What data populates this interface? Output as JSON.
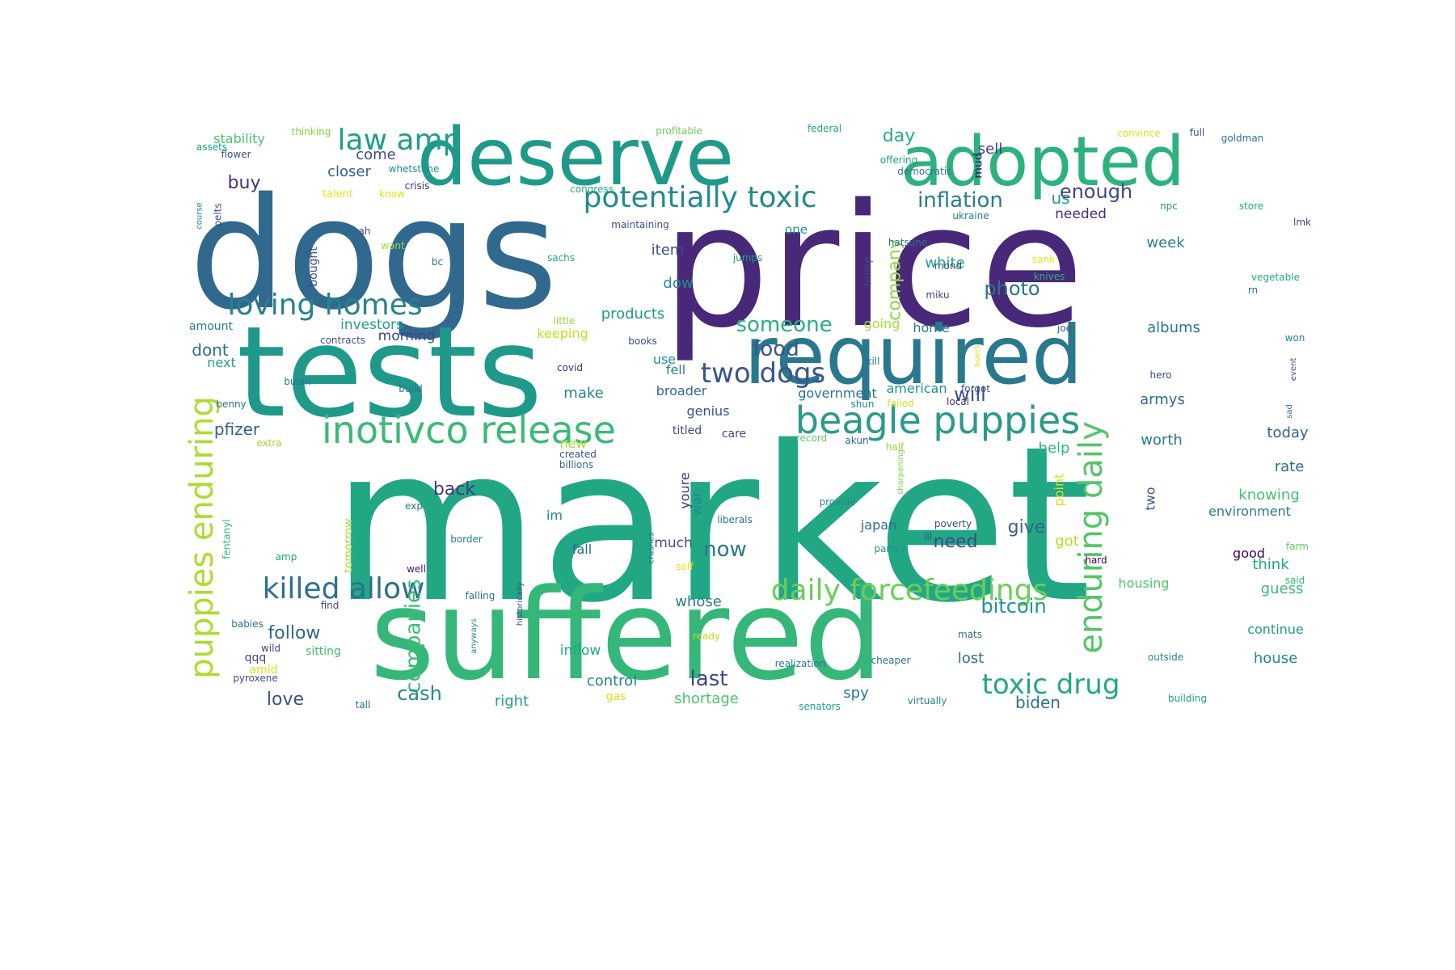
{
  "words": [
    {
      "text": "market",
      "color": "#22a785"
    },
    {
      "text": "price",
      "color": "#482878"
    },
    {
      "text": "dogs",
      "color": "#31688e"
    },
    {
      "text": "tests",
      "color": "#1f998a"
    },
    {
      "text": "suffered",
      "color": "#35b779"
    },
    {
      "text": "required",
      "color": "#2a788e"
    },
    {
      "text": "deserve",
      "color": "#1f9a8a"
    },
    {
      "text": "adopted",
      "color": "#2db27d"
    },
    {
      "text": "inotivco release",
      "color": "#3aba76"
    },
    {
      "text": "beagle puppies",
      "color": "#2a9a8a"
    },
    {
      "text": "puppies enduring",
      "color": "#addc30"
    },
    {
      "text": "enduring daily",
      "color": "#54c568"
    },
    {
      "text": "potentially toxic",
      "color": "#238a8d"
    },
    {
      "text": "loving homes",
      "color": "#26828e"
    },
    {
      "text": "killed allow",
      "color": "#2d708e"
    },
    {
      "text": "daily forcefeedings",
      "color": "#6ccd5a"
    },
    {
      "text": "two dogs",
      "color": "#39558c"
    },
    {
      "text": "toxic drug",
      "color": "#22a884"
    },
    {
      "text": "law amp",
      "color": "#1f9e89"
    },
    {
      "text": "inflation",
      "color": "#287d8e"
    },
    {
      "text": "someone",
      "color": "#29af7f"
    },
    {
      "text": "food",
      "color": "#39568c"
    },
    {
      "text": "photo",
      "color": "#2c728e"
    },
    {
      "text": "companies",
      "color": "#3cbb75"
    },
    {
      "text": "bitcoin",
      "color": "#1f948c"
    },
    {
      "text": "enough",
      "color": "#414487"
    },
    {
      "text": "last",
      "color": "#3e4a89"
    },
    {
      "text": "cash",
      "color": "#23898e"
    },
    {
      "text": "love",
      "color": "#3b528b"
    },
    {
      "text": "now",
      "color": "#2a768e"
    },
    {
      "text": "company",
      "color": "#8fd744"
    },
    {
      "text": "need",
      "color": "#3f4889"
    },
    {
      "text": "give",
      "color": "#33638d"
    },
    {
      "text": "will",
      "color": "#3c4f8a"
    },
    {
      "text": "day",
      "color": "#27ad81"
    },
    {
      "text": "buy",
      "color": "#46337e"
    },
    {
      "text": "us",
      "color": "#1fa187"
    },
    {
      "text": "follow",
      "color": "#31668e"
    },
    {
      "text": "back",
      "color": "#453781"
    },
    {
      "text": "dont",
      "color": "#2c718e"
    },
    {
      "text": "make",
      "color": "#27808e"
    },
    {
      "text": "item",
      "color": "#3d4d8a"
    },
    {
      "text": "pfizer",
      "color": "#34608d"
    },
    {
      "text": "come",
      "color": "#3d4e8a"
    },
    {
      "text": "closer",
      "color": "#355f8d"
    },
    {
      "text": "week",
      "color": "#277f8e"
    },
    {
      "text": "white",
      "color": "#1fa088"
    },
    {
      "text": "sell",
      "color": "#433e85"
    },
    {
      "text": "needed",
      "color": "#472c7a"
    },
    {
      "text": "products",
      "color": "#1f978b"
    },
    {
      "text": "dow",
      "color": "#238a8d"
    },
    {
      "text": "albums",
      "color": "#2a768e"
    },
    {
      "text": "armys",
      "color": "#30698e"
    },
    {
      "text": "today",
      "color": "#32648e"
    },
    {
      "text": "worth",
      "color": "#2a788e"
    },
    {
      "text": "rate",
      "color": "#30698e"
    },
    {
      "text": "knowing",
      "color": "#48c16e"
    },
    {
      "text": "environment",
      "color": "#2a788e"
    },
    {
      "text": "good",
      "color": "#440154"
    },
    {
      "text": "think",
      "color": "#20a386"
    },
    {
      "text": "guess",
      "color": "#3bbb75"
    },
    {
      "text": "continue",
      "color": "#1f9a8a"
    },
    {
      "text": "house",
      "color": "#23898e"
    },
    {
      "text": "biden",
      "color": "#2d708e"
    },
    {
      "text": "right",
      "color": "#1fa187"
    },
    {
      "text": "shortage",
      "color": "#4ec36b"
    },
    {
      "text": "control",
      "color": "#26828e"
    },
    {
      "text": "spy",
      "color": "#2a768e"
    },
    {
      "text": "whose",
      "color": "#287c8e"
    },
    {
      "text": "lost",
      "color": "#2e6f8e"
    },
    {
      "text": "got",
      "color": "#b5de2b"
    },
    {
      "text": "help",
      "color": "#32b67a"
    },
    {
      "text": "housing",
      "color": "#50c46a"
    },
    {
      "text": "two",
      "color": "#3a548c"
    },
    {
      "text": "point",
      "color": "#d8e219"
    },
    {
      "text": "youre",
      "color": "#472e7c"
    },
    {
      "text": "war",
      "color": "#25848e"
    },
    {
      "text": "much",
      "color": "#3d4e8a"
    },
    {
      "text": "fall",
      "color": "#31688e"
    },
    {
      "text": "im",
      "color": "#26828e"
    },
    {
      "text": "inflow",
      "color": "#22a884"
    },
    {
      "text": "gas",
      "color": "#dde318"
    },
    {
      "text": "tomorrow",
      "color": "#a8db34"
    },
    {
      "text": "morning",
      "color": "#414487"
    },
    {
      "text": "investors",
      "color": "#1f9e89"
    },
    {
      "text": "keeping",
      "color": "#bddf26"
    },
    {
      "text": "going",
      "color": "#a2da37"
    },
    {
      "text": "home",
      "color": "#2a778e"
    },
    {
      "text": "use",
      "color": "#21918c"
    },
    {
      "text": "fell",
      "color": "#277f8e"
    },
    {
      "text": "broader",
      "color": "#31688e"
    },
    {
      "text": "genius",
      "color": "#3b528b"
    },
    {
      "text": "care",
      "color": "#3e4989"
    },
    {
      "text": "government",
      "color": "#2c738e"
    },
    {
      "text": "american",
      "color": "#20928c"
    },
    {
      "text": "titled",
      "color": "#3f4788"
    },
    {
      "text": "new",
      "color": "#a5db36"
    },
    {
      "text": "japan",
      "color": "#2f6c8e"
    },
    {
      "text": "next",
      "color": "#1fa187"
    },
    {
      "text": "stability",
      "color": "#4ac16d"
    },
    {
      "text": "amount",
      "color": "#29798e"
    },
    {
      "text": "bought",
      "color": "#3e4a89"
    },
    {
      "text": "pelts",
      "color": "#3f4889"
    },
    {
      "text": "mud",
      "color": "#3b0f70"
    },
    {
      "text": "one",
      "color": "#20938c"
    },
    {
      "text": "trump",
      "color": "#3d4d8a"
    },
    {
      "text": "miku",
      "color": "#3f4788"
    },
    {
      "text": "mond",
      "color": "#3c508b"
    },
    {
      "text": "hatsune",
      "color": "#2e6d8e"
    },
    {
      "text": "ukraine",
      "color": "#277e8e"
    },
    {
      "text": "npc",
      "color": "#20928c"
    },
    {
      "text": "store",
      "color": "#25ab82"
    },
    {
      "text": "lmk",
      "color": "#3e4989"
    },
    {
      "text": "sank",
      "color": "#e2e418"
    },
    {
      "text": "knives",
      "color": "#2ab07f"
    },
    {
      "text": "vegetable",
      "color": "#22a785"
    },
    {
      "text": "rn",
      "color": "#2c728e"
    },
    {
      "text": "won",
      "color": "#25848e"
    },
    {
      "text": "event",
      "color": "#3b528b"
    },
    {
      "text": "sad",
      "color": "#2e6f8e"
    },
    {
      "text": "hero",
      "color": "#3f4889"
    },
    {
      "text": "joe",
      "color": "#39568c"
    },
    {
      "text": "kill",
      "color": "#2c718e"
    },
    {
      "text": "boers",
      "color": "#dde318"
    },
    {
      "text": "forgot",
      "color": "#3a548c"
    },
    {
      "text": "local",
      "color": "#472a7a"
    },
    {
      "text": "failed",
      "color": "#d0e11c"
    },
    {
      "text": "shun",
      "color": "#23898e"
    },
    {
      "text": "akun",
      "color": "#31668e"
    },
    {
      "text": "record",
      "color": "#5ec962"
    },
    {
      "text": "half",
      "color": "#95d840"
    },
    {
      "text": "sharpening",
      "color": "#7fd34e"
    },
    {
      "text": "provide",
      "color": "#25858e"
    },
    {
      "text": "liberals",
      "color": "#2c728e"
    },
    {
      "text": "ill",
      "color": "#3b528b"
    },
    {
      "text": "poverty",
      "color": "#3e4989"
    },
    {
      "text": "pantry",
      "color": "#20928c"
    },
    {
      "text": "hard",
      "color": "#440154"
    },
    {
      "text": "farm",
      "color": "#5ec962"
    },
    {
      "text": "said",
      "color": "#35b779"
    },
    {
      "text": "self",
      "color": "#e5e419"
    },
    {
      "text": "crashes",
      "color": "#2c728e"
    },
    {
      "text": "ready",
      "color": "#b8de29"
    },
    {
      "text": "mats",
      "color": "#2c718e"
    },
    {
      "text": "cheaper",
      "color": "#2e6d8e"
    },
    {
      "text": "realization",
      "color": "#29798e"
    },
    {
      "text": "outside",
      "color": "#26828e"
    },
    {
      "text": "building",
      "color": "#1fa088"
    },
    {
      "text": "virtually",
      "color": "#25848e"
    },
    {
      "text": "senators",
      "color": "#20a386"
    },
    {
      "text": "tall",
      "color": "#2c718e"
    },
    {
      "text": "pyroxene",
      "color": "#3e4989"
    },
    {
      "text": "amid",
      "color": "#d8e219"
    },
    {
      "text": "sitting",
      "color": "#3fbc73"
    },
    {
      "text": "qqq",
      "color": "#3f4788"
    },
    {
      "text": "wild",
      "color": "#3f4788"
    },
    {
      "text": "babies",
      "color": "#2c738e"
    },
    {
      "text": "find",
      "color": "#414487"
    },
    {
      "text": "well",
      "color": "#471063"
    },
    {
      "text": "amp",
      "color": "#1fa187"
    },
    {
      "text": "border",
      "color": "#277f8e"
    },
    {
      "text": "exp",
      "color": "#2a778e"
    },
    {
      "text": "fentanyl",
      "color": "#35b779"
    },
    {
      "text": "falling",
      "color": "#2e6e8e"
    },
    {
      "text": "historically",
      "color": "#3c4f8a"
    },
    {
      "text": "anyways",
      "color": "#21918c"
    },
    {
      "text": "extra",
      "color": "#a0da39"
    },
    {
      "text": "benny",
      "color": "#2d708e"
    },
    {
      "text": "build",
      "color": "#2e6f8e"
    },
    {
      "text": "bulan",
      "color": "#2c738e"
    },
    {
      "text": "covid",
      "color": "#472d7b"
    },
    {
      "text": "created",
      "color": "#3a548c"
    },
    {
      "text": "billions",
      "color": "#31668e"
    },
    {
      "text": "books",
      "color": "#3e4989"
    },
    {
      "text": "contracts",
      "color": "#3b528b"
    },
    {
      "text": "little",
      "color": "#93d741"
    },
    {
      "text": "jumps",
      "color": "#1f9e89"
    },
    {
      "text": "maintaining",
      "color": "#3c508b"
    },
    {
      "text": "sachs",
      "color": "#22a884"
    },
    {
      "text": "bc",
      "color": "#2d708e"
    },
    {
      "text": "want",
      "color": "#9bd93c"
    },
    {
      "text": "ah",
      "color": "#3f4788"
    },
    {
      "text": "course",
      "color": "#25858e"
    },
    {
      "text": "talent",
      "color": "#e5e419"
    },
    {
      "text": "know",
      "color": "#dfe318"
    },
    {
      "text": "crisis",
      "color": "#472d7b"
    },
    {
      "text": "whetstone",
      "color": "#23898e"
    },
    {
      "text": "flower",
      "color": "#3e4a89"
    },
    {
      "text": "assets",
      "color": "#1f9e89"
    },
    {
      "text": "thinking",
      "color": "#86d549"
    },
    {
      "text": "profitable",
      "color": "#6ccd5a"
    },
    {
      "text": "federal",
      "color": "#20a386"
    },
    {
      "text": "offering",
      "color": "#1f9e89"
    },
    {
      "text": "democratic",
      "color": "#2c728e"
    },
    {
      "text": "congress",
      "color": "#29af7f"
    },
    {
      "text": "convince",
      "color": "#dde318"
    },
    {
      "text": "full",
      "color": "#3b528b"
    },
    {
      "text": "goldman",
      "color": "#2c728e"
    }
  ]
}
